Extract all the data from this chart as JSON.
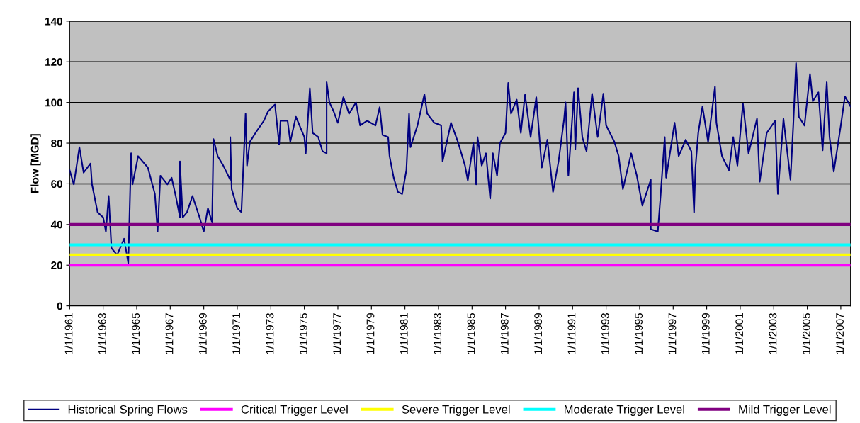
{
  "chart_data": {
    "type": "line",
    "ylabel": "Flow [MGD]",
    "xlim": [
      "1961-01-01",
      "2007-08-01"
    ],
    "xticks": [
      {
        "value": "1961-01-01",
        "label": "1/1/1961"
      },
      {
        "value": "1963-01-01",
        "label": "1/1/1963"
      },
      {
        "value": "1965-01-01",
        "label": "1/1/1965"
      },
      {
        "value": "1967-01-01",
        "label": "1/1/1967"
      },
      {
        "value": "1969-01-01",
        "label": "1/1/1969"
      },
      {
        "value": "1971-01-01",
        "label": "1/1/1971"
      },
      {
        "value": "1973-01-01",
        "label": "1/1/1973"
      },
      {
        "value": "1975-01-01",
        "label": "1/1/1975"
      },
      {
        "value": "1977-01-01",
        "label": "1/1/1977"
      },
      {
        "value": "1979-01-01",
        "label": "1/1/1979"
      },
      {
        "value": "1981-01-01",
        "label": "1/1/1981"
      },
      {
        "value": "1983-01-01",
        "label": "1/1/1983"
      },
      {
        "value": "1985-01-01",
        "label": "1/1/1985"
      },
      {
        "value": "1987-01-01",
        "label": "1/1/1987"
      },
      {
        "value": "1989-01-01",
        "label": "1/1/1989"
      },
      {
        "value": "1991-01-01",
        "label": "1/1/1991"
      },
      {
        "value": "1993-01-01",
        "label": "1/1/1993"
      },
      {
        "value": "1995-01-01",
        "label": "1/1/1995"
      },
      {
        "value": "1997-01-01",
        "label": "1/1/1997"
      },
      {
        "value": "1999-01-01",
        "label": "1/1/1999"
      },
      {
        "value": "2001-01-01",
        "label": "1/1/2001"
      },
      {
        "value": "2003-01-01",
        "label": "1/1/2003"
      },
      {
        "value": "2005-01-01",
        "label": "1/1/2005"
      },
      {
        "value": "2007-01-01",
        "label": "1/1/2007"
      }
    ],
    "ylim": [
      0,
      140
    ],
    "yticks": [
      0,
      20,
      40,
      60,
      80,
      100,
      120,
      140
    ],
    "grid": "y",
    "legend": "bottom",
    "marker": "none",
    "line_style": "solid",
    "series": [
      {
        "name": "Historical Spring Flows",
        "color": "#000080",
        "x": [
          "1961-01",
          "1961-04",
          "1961-08",
          "1961-11",
          "1962-04",
          "1962-05",
          "1962-09",
          "1963-01",
          "1963-03",
          "1963-05",
          "1963-07",
          "1963-11",
          "1964-04",
          "1964-07",
          "1964-09",
          "1964-10",
          "1965-02",
          "1965-09",
          "1966-02",
          "1966-04",
          "1966-06",
          "1966-11",
          "1967-02",
          "1967-05",
          "1967-08",
          "1967-08",
          "1967-10",
          "1968-01",
          "1968-05",
          "1968-10",
          "1969-01",
          "1969-04",
          "1969-07",
          "1969-08",
          "1969-11",
          "1970-03",
          "1970-08",
          "1970-08",
          "1970-09",
          "1971-01",
          "1971-04",
          "1971-07",
          "1971-08",
          "1971-10",
          "1972-02",
          "1972-08",
          "1972-11",
          "1973-04",
          "1973-07",
          "1973-08",
          "1974-01",
          "1974-03",
          "1974-07",
          "1975-01",
          "1975-02",
          "1975-05",
          "1975-07",
          "1975-11",
          "1976-02",
          "1976-05",
          "1976-05",
          "1976-07",
          "1976-10",
          "1977-01",
          "1977-05",
          "1977-09",
          "1978-02",
          "1978-05",
          "1978-10",
          "1979-04",
          "1979-07",
          "1979-09",
          "1980-01",
          "1980-02",
          "1980-05",
          "1980-08",
          "1980-11",
          "1981-02",
          "1981-04",
          "1981-05",
          "1981-10",
          "1982-03",
          "1982-05",
          "1982-10",
          "1983-03",
          "1983-04",
          "1983-10",
          "1984-03",
          "1984-08",
          "1984-10",
          "1985-02",
          "1985-04",
          "1985-05",
          "1985-08",
          "1985-11",
          "1986-02",
          "1986-04",
          "1986-07",
          "1986-09",
          "1987-01",
          "1987-03",
          "1987-05",
          "1987-09",
          "1987-12",
          "1988-03",
          "1988-07",
          "1988-11",
          "1989-03",
          "1989-07",
          "1989-11",
          "1990-03",
          "1990-07",
          "1990-08",
          "1990-10",
          "1991-02",
          "1991-03",
          "1991-05",
          "1991-08",
          "1991-11",
          "1992-03",
          "1992-07",
          "1992-11",
          "1993-01",
          "1993-07",
          "1993-10",
          "1994-01",
          "1994-07",
          "1994-11",
          "1995-03",
          "1995-09",
          "1995-09",
          "1996-02",
          "1996-04",
          "1996-07",
          "1996-08",
          "1997-02",
          "1997-05",
          "1997-10",
          "1998-02",
          "1998-04",
          "1998-05",
          "1998-07",
          "1998-10",
          "1999-02",
          "1999-07",
          "1999-08",
          "1999-12",
          "2000-05",
          "2000-08",
          "2000-11",
          "2001-03",
          "2001-07",
          "2002-01",
          "2002-03",
          "2002-08",
          "2003-02",
          "2003-04",
          "2003-08",
          "2004-01",
          "2004-03",
          "2004-05",
          "2004-07",
          "2004-11",
          "2005-03",
          "2005-05",
          "2005-09",
          "2005-12",
          "2006-03",
          "2006-05",
          "2006-08",
          "2007-01",
          "2007-04",
          "2007-08"
        ],
        "values": [
          66.7,
          59.7,
          78,
          65.5,
          70,
          60,
          46,
          43.5,
          36.5,
          54,
          28.4,
          25,
          33,
          21,
          75,
          59.7,
          73.6,
          68,
          55,
          36.5,
          64,
          59.7,
          63,
          54,
          43.5,
          71,
          43.5,
          46,
          54,
          43.5,
          36.5,
          48,
          41,
          82,
          73.6,
          69,
          62,
          83,
          57.4,
          48,
          46,
          94.5,
          69,
          80.6,
          85,
          91,
          95.6,
          99,
          79.4,
          91,
          91,
          80.6,
          93,
          83,
          75,
          107,
          85,
          83,
          76,
          75,
          110,
          100,
          95.6,
          90,
          102.6,
          94.5,
          100,
          88.7,
          91,
          88.7,
          97.7,
          84,
          83,
          73.6,
          63,
          56,
          55,
          66.7,
          94.5,
          78,
          88.7,
          104,
          94.5,
          90,
          88.7,
          71,
          90,
          80.6,
          69,
          61.7,
          80,
          59.7,
          83,
          69,
          75,
          52.8,
          75,
          64,
          80,
          85,
          109.6,
          94.5,
          101.4,
          85,
          103.8,
          83,
          102.6,
          68,
          81.7,
          56,
          71,
          92,
          100,
          64,
          105,
          77,
          107,
          83,
          76,
          104.3,
          83,
          104.3,
          88.7,
          80.6,
          73.6,
          57.4,
          75,
          64,
          49.3,
          62,
          37.7,
          36.5,
          54,
          83,
          63,
          90,
          73.6,
          81.7,
          76,
          46,
          68,
          85,
          98,
          80.6,
          107.8,
          90,
          73.6,
          66.7,
          83,
          69,
          99.4,
          75,
          92,
          61,
          85,
          91,
          55,
          92,
          62,
          88.7,
          119.4,
          93,
          88.7,
          114,
          100.6,
          105,
          76.5,
          110,
          83,
          66,
          88.7,
          103,
          98
        ]
      },
      {
        "name": "Critical Trigger Level",
        "color": "#ff00ff",
        "x": [
          "1961-01-01",
          "2007-08-01"
        ],
        "values": [
          20,
          20
        ]
      },
      {
        "name": "Severe Trigger Level",
        "color": "#ffff00",
        "x": [
          "1961-01-01",
          "2007-08-01"
        ],
        "values": [
          25,
          25
        ]
      },
      {
        "name": "Moderate Trigger Level",
        "color": "#00ffff",
        "x": [
          "1961-01-01",
          "2007-08-01"
        ],
        "values": [
          30,
          30
        ]
      },
      {
        "name": "Mild Trigger Level",
        "color": "#800080",
        "x": [
          "1961-01-01",
          "2007-08-01"
        ],
        "values": [
          40,
          40
        ]
      }
    ]
  }
}
